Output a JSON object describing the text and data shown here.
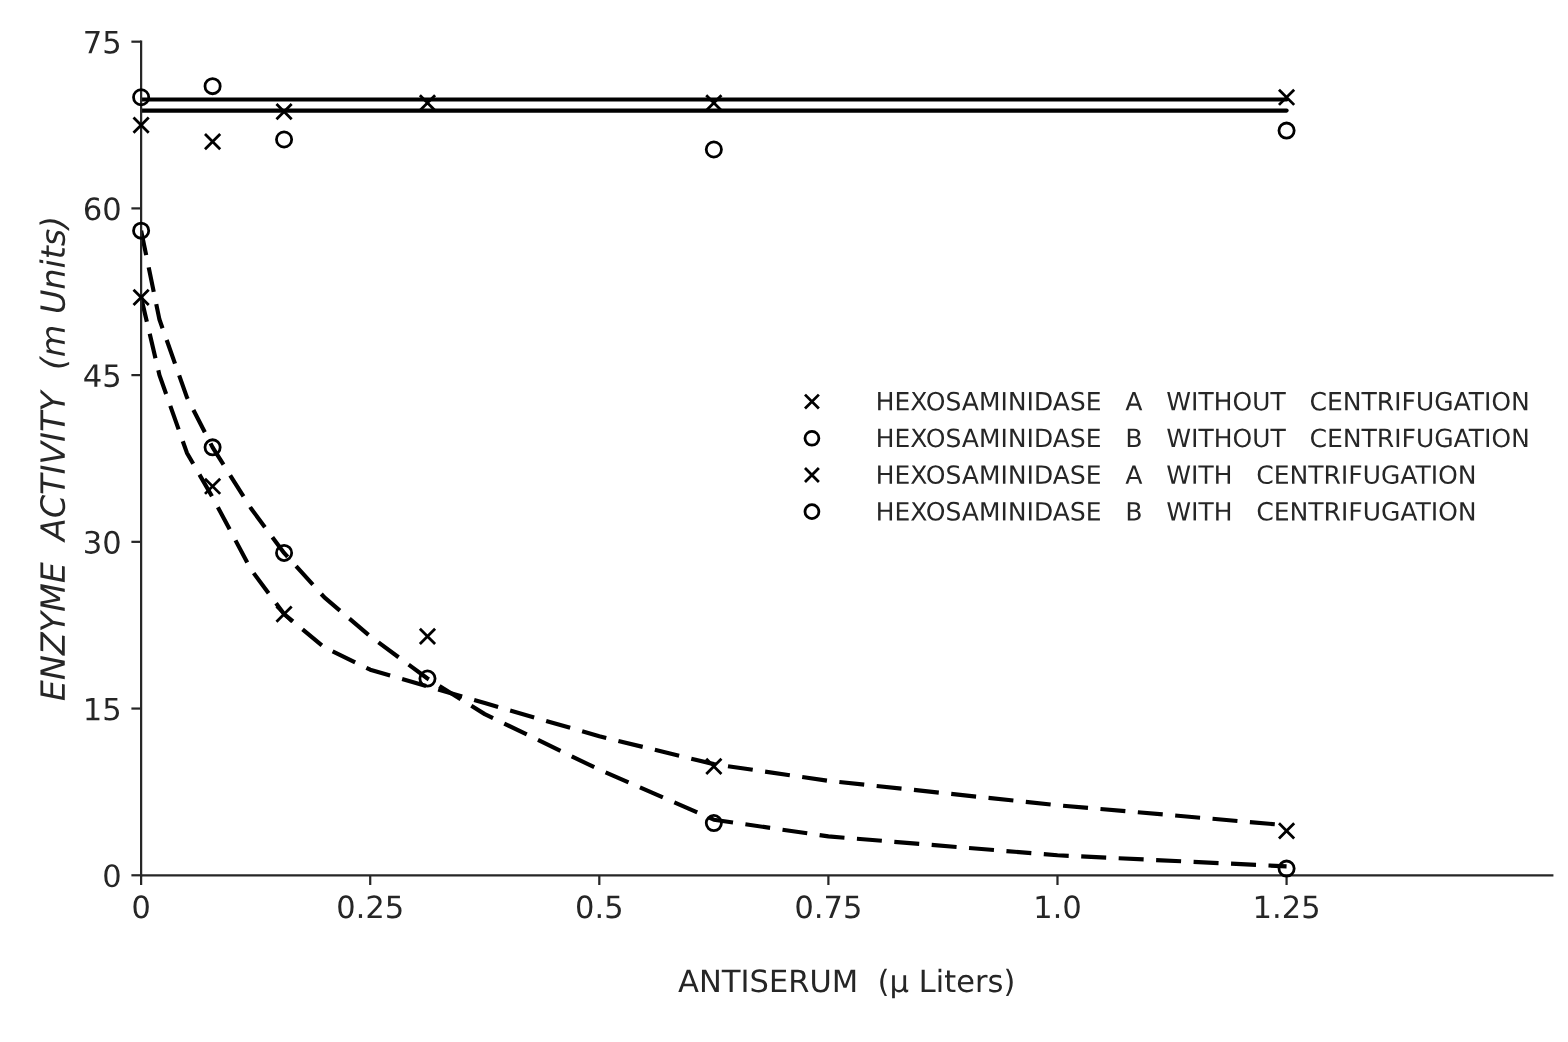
{
  "chart_data": {
    "type": "line",
    "xlabel": "ANTISERUM  (μ Liters)",
    "ylabel": "ENZYME  ACTIVITY  (m Units)",
    "xlim": [
      0,
      1.54
    ],
    "ylim": [
      0,
      75
    ],
    "xticks": [
      0,
      0.25,
      0.5,
      0.75,
      {
        "value": 1.0,
        "label": "1.0"
      },
      1.25
    ],
    "yticks": [
      0,
      15,
      30,
      45,
      60,
      75
    ],
    "grid": false,
    "legend": "center right",
    "series": [
      {
        "name": "HEXOSAMINIDASE   A   WITHOUT   CENTRIFUGATION",
        "type": "scatter",
        "marker": "cross",
        "color": "#000000",
        "x": [
          0,
          0.078,
          0.156,
          0.3125,
          0.625,
          1.25
        ],
        "values": [
          67.5,
          66,
          68.7,
          69.5,
          69.5,
          70
        ]
      },
      {
        "name": "HEXOSAMINIDASE   B   WITHOUT   CENTRIFUGATION",
        "type": "scatter",
        "marker": "circle",
        "color": "#000000",
        "x": [
          0,
          0.078,
          0.156,
          0.625,
          1.25
        ],
        "values": [
          70,
          71,
          66.2,
          65.3,
          67
        ]
      },
      {
        "name": "HEXOSAMINIDASE   A   WITH   CENTRIFUGATION",
        "type": "scatter",
        "marker": "cross",
        "color": "#000000",
        "x": [
          0,
          0.078,
          0.156,
          0.3125,
          0.625,
          1.25
        ],
        "values": [
          52,
          35,
          23.5,
          21.5,
          9.8,
          4
        ]
      },
      {
        "name": "HEXOSAMINIDASE   B   WITH   CENTRIFUGATION",
        "type": "scatter",
        "marker": "circle",
        "color": "#000000",
        "x": [
          0,
          0.078,
          0.156,
          0.3125,
          0.625,
          1.25
        ],
        "values": [
          58,
          38.5,
          29,
          17.7,
          4.7,
          0.6
        ]
      },
      {
        "line_style": "solid",
        "color": "#000000",
        "x": [
          0,
          1.25
        ],
        "values": [
          68.8,
          68.8
        ]
      },
      {
        "line_style": "solid",
        "color": "#000000",
        "x": [
          0,
          1.25
        ],
        "values": [
          69.8,
          69.8
        ]
      },
      {
        "line_style": "dashed",
        "color": "#000000",
        "x": [
          0,
          0.02,
          0.05,
          0.078,
          0.12,
          0.156,
          0.2,
          0.25,
          0.3125,
          0.375,
          0.5,
          0.625,
          0.75,
          1.0,
          1.25
        ],
        "values": [
          52,
          45,
          38,
          34,
          27.5,
          23.5,
          20.5,
          18.5,
          17,
          15.5,
          12.5,
          10,
          8.5,
          6.3,
          4.5
        ]
      },
      {
        "line_style": "dashed",
        "color": "#000000",
        "x": [
          0,
          0.02,
          0.05,
          0.078,
          0.12,
          0.156,
          0.2,
          0.25,
          0.3125,
          0.375,
          0.5,
          0.625,
          0.75,
          1.0,
          1.25
        ],
        "values": [
          58,
          50,
          43,
          38.5,
          33,
          29,
          25,
          21.5,
          17.7,
          14.5,
          9.5,
          5,
          3.5,
          1.8,
          0.8
        ]
      }
    ]
  }
}
